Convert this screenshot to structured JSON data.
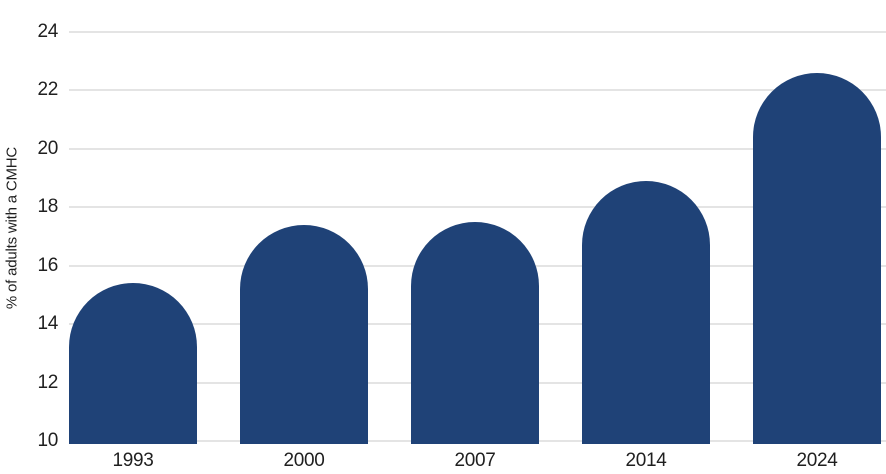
{
  "chart_data": {
    "type": "bar",
    "categories": [
      "1993",
      "2000",
      "2007",
      "2014",
      "2024"
    ],
    "values": [
      15.4,
      17.4,
      17.5,
      18.9,
      22.6
    ],
    "title": "",
    "xlabel": "",
    "ylabel": "% of adults with a CMHC",
    "ylim": [
      10,
      24
    ],
    "yticks": [
      24,
      22,
      20,
      18,
      16,
      14,
      12,
      10
    ],
    "grid": true,
    "legend": false,
    "bar_shape": "rounded-top",
    "colors": {
      "bar": "#1f4277",
      "gridline": "#e4e4e4",
      "text": "#1f1f1f",
      "background": "#ffffff"
    }
  }
}
